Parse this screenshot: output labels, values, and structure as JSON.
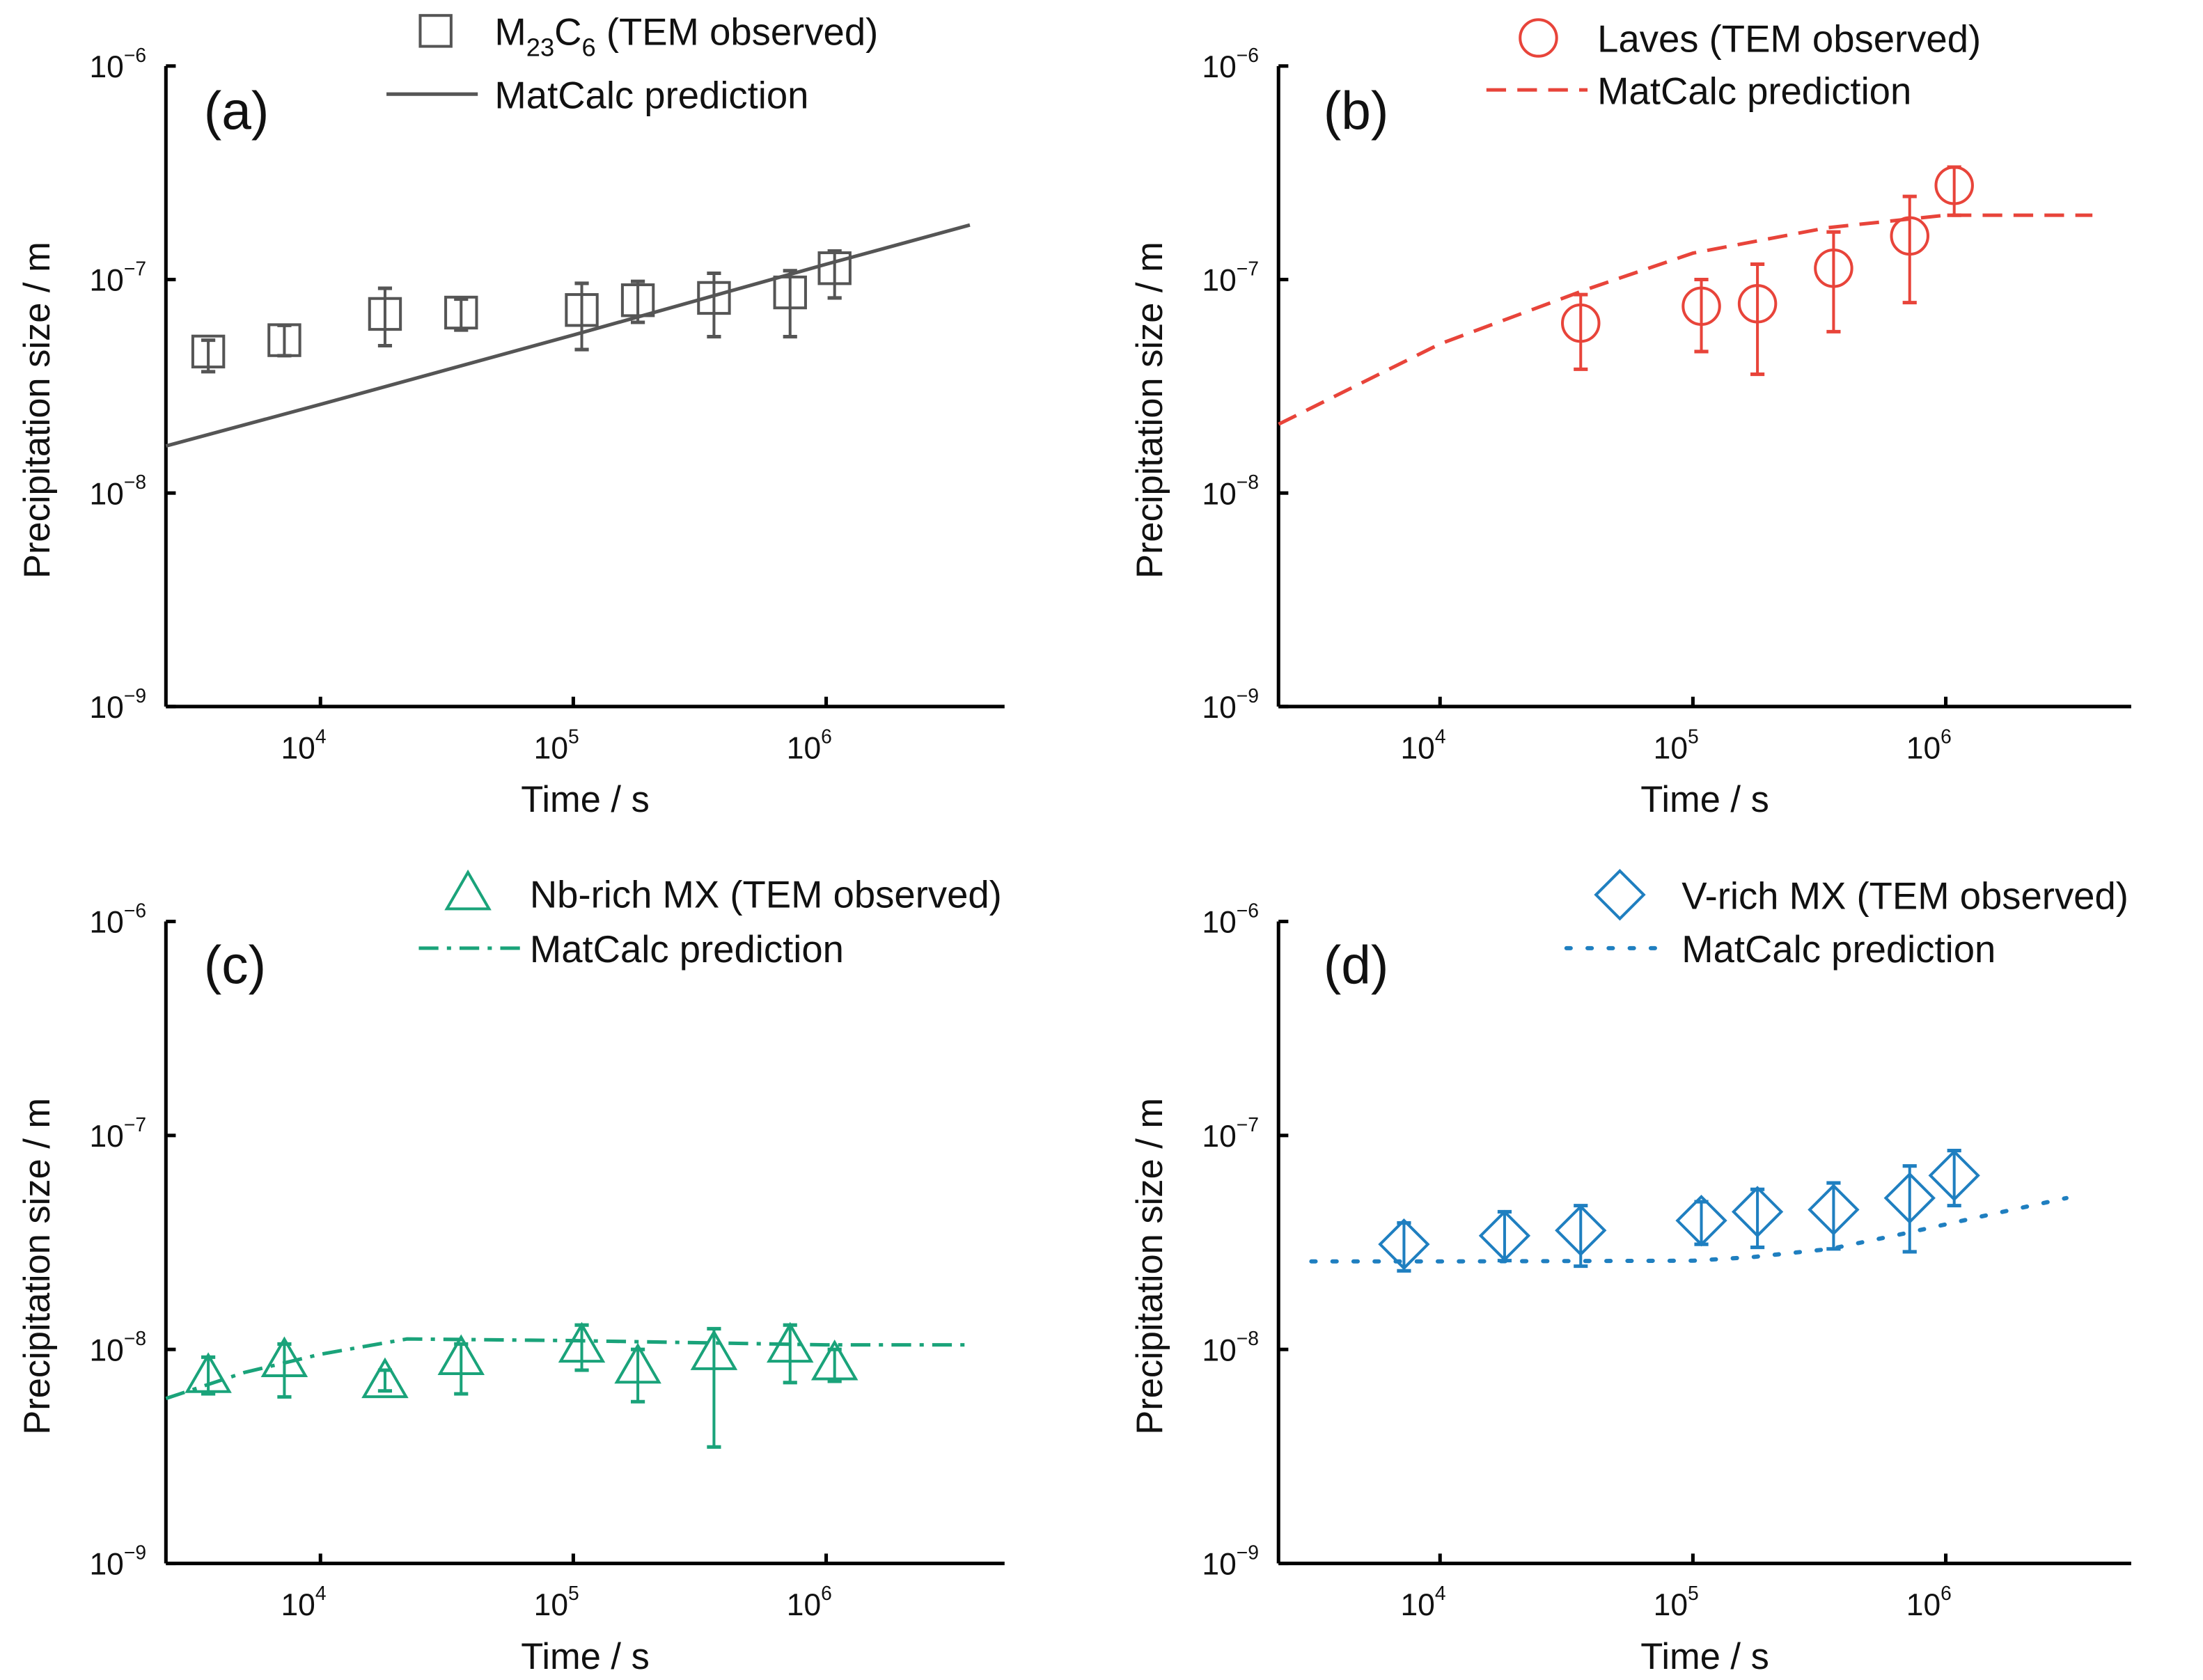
{
  "chart_data": [
    {
      "type": "scatter",
      "panel_label": "(a)",
      "xlabel": "Time / s",
      "ylabel": "Precipitation size / m",
      "xscale": "log",
      "yscale": "log",
      "xlim": [
        2450,
        5100000
      ],
      "ylim": [
        1e-09,
        1e-06
      ],
      "x_ticks": [
        {
          "value": 10000.0,
          "base": "10",
          "exp": "4"
        },
        {
          "value": 100000.0,
          "base": "10",
          "exp": "5"
        },
        {
          "value": 1000000.0,
          "base": "10",
          "exp": "6"
        }
      ],
      "y_ticks": [
        {
          "value": 1e-06,
          "base": "10",
          "exp": "−6"
        },
        {
          "value": 1e-07,
          "base": "10",
          "exp": "−7"
        },
        {
          "value": 1e-08,
          "base": "10",
          "exp": "−8"
        },
        {
          "value": 1e-09,
          "base": "10",
          "exp": "−9"
        }
      ],
      "color": "#555555",
      "legend_position": "top-right",
      "observed": {
        "name_parts": [
          "M",
          "23",
          "C",
          "6",
          " (TEM observed)"
        ],
        "marker": "square",
        "x": [
          3600,
          7200,
          18000,
          36000,
          108000,
          180000,
          360000,
          720000,
          1080000
        ],
        "y": [
          4.6e-08,
          5.2e-08,
          6.9e-08,
          7e-08,
          7.2e-08,
          8e-08,
          8.2e-08,
          8.7e-08,
          1.13e-07
        ],
        "y_low": [
          3.7e-08,
          4.4e-08,
          4.9e-08,
          5.8e-08,
          4.7e-08,
          6.3e-08,
          5.4e-08,
          5.4e-08,
          8.2e-08
        ],
        "y_high": [
          5.2e-08,
          6.1e-08,
          9.1e-08,
          8.1e-08,
          9.6e-08,
          9.8e-08,
          1.07e-07,
          1.1e-07,
          1.36e-07
        ]
      },
      "prediction": {
        "name": "MatCalc prediction",
        "style": "solid",
        "x": [
          2450,
          10000,
          100000,
          1000000,
          3700000
        ],
        "y": [
          1.66e-08,
          2.6e-08,
          5.5e-08,
          1.18e-07,
          1.8e-07
        ]
      }
    },
    {
      "type": "scatter",
      "panel_label": "(b)",
      "xlabel": "Time / s",
      "ylabel": "Precipitation size / m",
      "xscale": "log",
      "yscale": "log",
      "xlim": [
        2300,
        5000000
      ],
      "ylim": [
        1e-09,
        1e-06
      ],
      "x_ticks": [
        {
          "value": 10000.0,
          "base": "10",
          "exp": "4"
        },
        {
          "value": 100000.0,
          "base": "10",
          "exp": "5"
        },
        {
          "value": 1000000.0,
          "base": "10",
          "exp": "6"
        }
      ],
      "y_ticks": [
        {
          "value": 1e-06,
          "base": "10",
          "exp": "−6"
        },
        {
          "value": 1e-07,
          "base": "10",
          "exp": "−7"
        },
        {
          "value": 1e-08,
          "base": "10",
          "exp": "−8"
        },
        {
          "value": 1e-09,
          "base": "10",
          "exp": "−9"
        }
      ],
      "color": "#e8443a",
      "legend_position": "top-right",
      "observed": {
        "name_parts": [
          "Laves (TEM observed)"
        ],
        "marker": "circle",
        "x": [
          36000,
          108000,
          180000,
          360000,
          720000,
          1080000
        ],
        "y": [
          6.25e-08,
          7.5e-08,
          7.7e-08,
          1.13e-07,
          1.6e-07,
          2.76e-07
        ],
        "y_low": [
          3.8e-08,
          4.6e-08,
          3.6e-08,
          5.7e-08,
          7.8e-08,
          2e-07
        ],
        "y_high": [
          8.5e-08,
          1e-07,
          1.18e-07,
          1.67e-07,
          2.45e-07,
          3.36e-07
        ]
      },
      "prediction": {
        "name": "MatCalc prediction",
        "style": "dashed",
        "x": [
          2300,
          10000,
          38000,
          100000,
          340000,
          1000000,
          3800000
        ],
        "y": [
          2.1e-08,
          5e-08,
          9e-08,
          1.33e-07,
          1.75e-07,
          2e-07,
          2e-07
        ]
      }
    },
    {
      "type": "scatter",
      "panel_label": "(c)",
      "xlabel": "Time / s",
      "ylabel": "Precipitation size / m",
      "xscale": "log",
      "yscale": "log",
      "xlim": [
        2450,
        5100000
      ],
      "ylim": [
        1e-09,
        1e-06
      ],
      "x_ticks": [
        {
          "value": 10000.0,
          "base": "10",
          "exp": "4"
        },
        {
          "value": 100000.0,
          "base": "10",
          "exp": "5"
        },
        {
          "value": 1000000.0,
          "base": "10",
          "exp": "6"
        }
      ],
      "y_ticks": [
        {
          "value": 1e-06,
          "base": "10",
          "exp": "−6"
        },
        {
          "value": 1e-07,
          "base": "10",
          "exp": "−7"
        },
        {
          "value": 1e-08,
          "base": "10",
          "exp": "−8"
        },
        {
          "value": 1e-09,
          "base": "10",
          "exp": "−9"
        }
      ],
      "color": "#1aa37a",
      "legend_position": "top-right",
      "observed": {
        "name_parts": [
          "Nb-rich MX (TEM observed)"
        ],
        "marker": "triangle",
        "x": [
          3600,
          7200,
          18000,
          36000,
          108000,
          180000,
          360000,
          720000,
          1080000
        ],
        "y": [
          7.5e-09,
          8.9e-09,
          7.1e-09,
          9.1e-09,
          1.04e-08,
          8.3e-09,
          9.6e-09,
          1.04e-08,
          8.6e-09
        ],
        "y_low": [
          6.2e-09,
          6e-09,
          6.4e-09,
          6.2e-09,
          8e-09,
          5.7e-09,
          3.5e-09,
          7e-09,
          7.1e-09
        ],
        "y_high": [
          9.2e-09,
          1.06e-08,
          8e-09,
          1.06e-08,
          1.3e-08,
          1e-08,
          1.25e-08,
          1.3e-08,
          1e-08
        ]
      },
      "prediction": {
        "name": "MatCalc prediction",
        "style": "dash-dot",
        "x": [
          2450,
          5000,
          10000,
          22000,
          100000,
          1000000,
          3700000
        ],
        "y": [
          5.9e-09,
          7.8e-09,
          9.5e-09,
          1.12e-08,
          1.1e-08,
          1.05e-08,
          1.05e-08
        ]
      }
    },
    {
      "type": "scatter",
      "panel_label": "(d)",
      "xlabel": "Time / s",
      "ylabel": "Precipitation size / m",
      "xscale": "log",
      "yscale": "log",
      "xlim": [
        2300,
        5000000
      ],
      "ylim": [
        1e-09,
        1e-06
      ],
      "x_ticks": [
        {
          "value": 10000.0,
          "base": "10",
          "exp": "4"
        },
        {
          "value": 100000.0,
          "base": "10",
          "exp": "5"
        },
        {
          "value": 1000000.0,
          "base": "10",
          "exp": "6"
        }
      ],
      "y_ticks": [
        {
          "value": 1e-06,
          "base": "10",
          "exp": "−6"
        },
        {
          "value": 1e-07,
          "base": "10",
          "exp": "−7"
        },
        {
          "value": 1e-08,
          "base": "10",
          "exp": "−8"
        },
        {
          "value": 1e-09,
          "base": "10",
          "exp": "−9"
        }
      ],
      "color": "#1f7fc0",
      "legend_position": "top-right",
      "observed": {
        "name_parts": [
          "V-rich MX (TEM observed)"
        ],
        "marker": "diamond",
        "x": [
          7200,
          18000,
          36000,
          108000,
          180000,
          360000,
          720000,
          1080000
        ],
        "y": [
          3.1e-08,
          3.4e-08,
          3.6e-08,
          4e-08,
          4.4e-08,
          4.5e-08,
          5.1e-08,
          6.5e-08
        ],
        "y_low": [
          2.33e-08,
          2.6e-08,
          2.45e-08,
          3.1e-08,
          3e-08,
          2.95e-08,
          2.86e-08,
          4.7e-08
        ],
        "y_high": [
          3.9e-08,
          4.4e-08,
          4.7e-08,
          4.9e-08,
          5.6e-08,
          6e-08,
          7.2e-08,
          8.5e-08
        ]
      },
      "prediction": {
        "name": "MatCalc prediction",
        "style": "dotted",
        "x": [
          3100,
          10000,
          100000,
          170000,
          350000,
          700000,
          1500000,
          3000000
        ],
        "y": [
          2.58e-08,
          2.58e-08,
          2.6e-08,
          2.7e-08,
          2.95e-08,
          3.5e-08,
          4.27e-08,
          5.1e-08
        ]
      }
    }
  ]
}
